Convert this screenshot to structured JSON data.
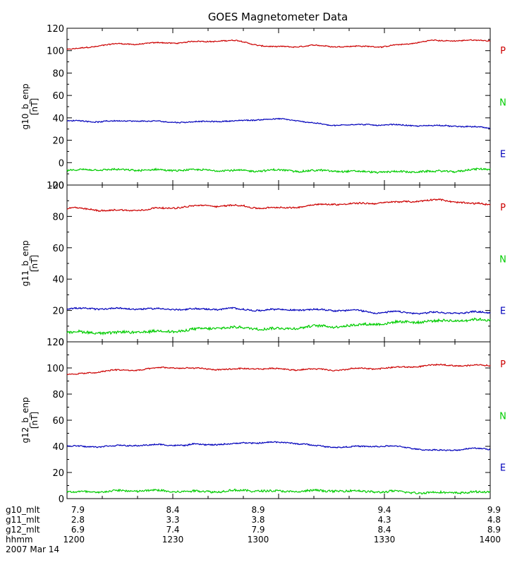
{
  "title": "GOES Magnetometer Data",
  "colors": {
    "P": "#cc0000",
    "N": "#00cc00",
    "E": "#0000bb",
    "axis": "#000000"
  },
  "chart_data": [
    {
      "type": "line",
      "ylabel": "g10_b_enp",
      "yunit": "[nT]",
      "ylim": [
        -20,
        120
      ],
      "yticks": [
        -20,
        0,
        20,
        40,
        60,
        80,
        100,
        120
      ],
      "legend": [
        "P",
        "N",
        "E"
      ],
      "x": [
        1200,
        1215,
        1230,
        1245,
        1300,
        1315,
        1330,
        1345,
        1400
      ],
      "series": [
        {
          "name": "P",
          "values": [
            101,
            106,
            107,
            109,
            103,
            104,
            104,
            109,
            109
          ]
        },
        {
          "name": "E",
          "values": [
            37,
            37,
            36,
            37,
            39,
            34,
            34,
            33,
            31
          ]
        },
        {
          "name": "N",
          "values": [
            -7,
            -7,
            -7,
            -7,
            -7,
            -7,
            -8,
            -8,
            -6
          ]
        }
      ]
    },
    {
      "type": "line",
      "ylabel": "g11_b_enp",
      "yunit": "[nT]",
      "ylim": [
        0,
        100
      ],
      "yticks": [
        0,
        20,
        40,
        60,
        80,
        100
      ],
      "legend": [
        "P",
        "N",
        "E"
      ],
      "x": [
        1200,
        1215,
        1230,
        1245,
        1300,
        1315,
        1330,
        1345,
        1400
      ],
      "series": [
        {
          "name": "P",
          "values": [
            85,
            84,
            86,
            87,
            85,
            88,
            89,
            90,
            88
          ]
        },
        {
          "name": "E",
          "values": [
            21,
            21,
            21,
            21,
            20,
            21,
            19,
            18,
            19
          ]
        },
        {
          "name": "N",
          "values": [
            6,
            6,
            7,
            9,
            9,
            10,
            12,
            13,
            14
          ]
        }
      ]
    },
    {
      "type": "line",
      "ylabel": "g12_b_enp",
      "yunit": "[nT]",
      "ylim": [
        0,
        120
      ],
      "yticks": [
        0,
        20,
        40,
        60,
        80,
        100,
        120
      ],
      "legend": [
        "P",
        "N",
        "E"
      ],
      "x": [
        1200,
        1215,
        1230,
        1245,
        1300,
        1315,
        1330,
        1345,
        1400
      ],
      "series": [
        {
          "name": "P",
          "values": [
            95,
            98,
            100,
            99,
            99,
            99,
            100,
            102,
            102
          ]
        },
        {
          "name": "E",
          "values": [
            40,
            41,
            41,
            42,
            43,
            40,
            40,
            37,
            38
          ]
        },
        {
          "name": "N",
          "values": [
            5,
            6,
            6,
            6,
            6,
            6,
            5,
            5,
            5
          ]
        }
      ]
    }
  ],
  "xaxis": {
    "rows": [
      {
        "label": "g10_mlt",
        "values": [
          "7.9",
          "8.4",
          "8.9",
          "9.4",
          "9.9"
        ]
      },
      {
        "label": "g11_mlt",
        "values": [
          "2.8",
          "3.3",
          "3.8",
          "4.3",
          "4.8"
        ]
      },
      {
        "label": "g12_mlt",
        "values": [
          "6.9",
          "7.4",
          "7.9",
          "8.4",
          "8.9"
        ]
      },
      {
        "label": "hhmm",
        "values": [
          "1200",
          "1230",
          "1300",
          "1330",
          "1400"
        ]
      }
    ],
    "date": "2007 Mar 14"
  }
}
